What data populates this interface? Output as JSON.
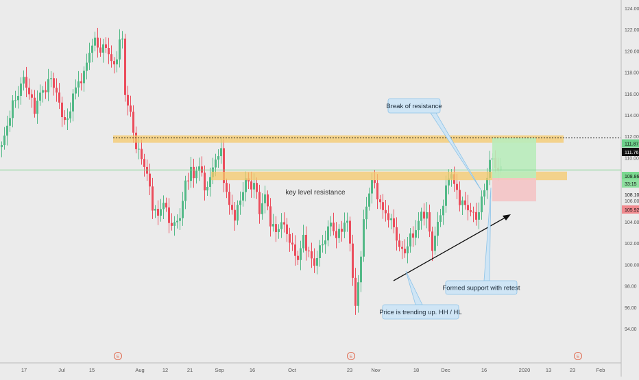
{
  "chart_data": {
    "type": "candlestick",
    "title": "",
    "xlabel": "",
    "ylabel": "",
    "ylim": [
      93,
      125
    ],
    "y_ticks": [
      "124.00",
      "122.00",
      "120.00",
      "118.00",
      "116.00",
      "114.00",
      "112.00",
      "110.00",
      "108.00",
      "106.00",
      "104.00",
      "102.00",
      "100.00",
      "98.00",
      "96.00",
      "94.00"
    ],
    "x_ticks": [
      "17",
      "Jul",
      "15",
      "Aug",
      "12",
      "21",
      "Sep",
      "16",
      "Oct",
      "23",
      "Nov",
      "18",
      "Dec",
      "16",
      "2020",
      "13",
      "23",
      "Feb"
    ],
    "event_markers": [
      "E",
      "E",
      "E"
    ],
    "price_tags": {
      "resistance_top": "111.87",
      "last_price": "111.76",
      "current_price": "108.86",
      "countdown": "33:15",
      "entry": "108.10",
      "stop": "105.92"
    },
    "zones": [
      {
        "name": "upper resistance band",
        "low": 111.4,
        "high": 112.1
      },
      {
        "name": "key level resistance",
        "low": 107.9,
        "high": 108.7
      }
    ],
    "position": {
      "entry": 108.1,
      "target": 111.87,
      "stop": 105.92
    },
    "annotations": {
      "break_of_resistance": "Break of resistance",
      "key_level_resistance": "key level resistance",
      "formed_support": "Formed support with retest",
      "trending_up": "Price is trending up. HH / HL"
    },
    "colors": {
      "up": "#53b987",
      "down": "#eb4d5c",
      "zone": "#f5c96b",
      "target": "#b9ecbb",
      "stop": "#f4c4c5",
      "current_line": "#7fd38f"
    }
  }
}
